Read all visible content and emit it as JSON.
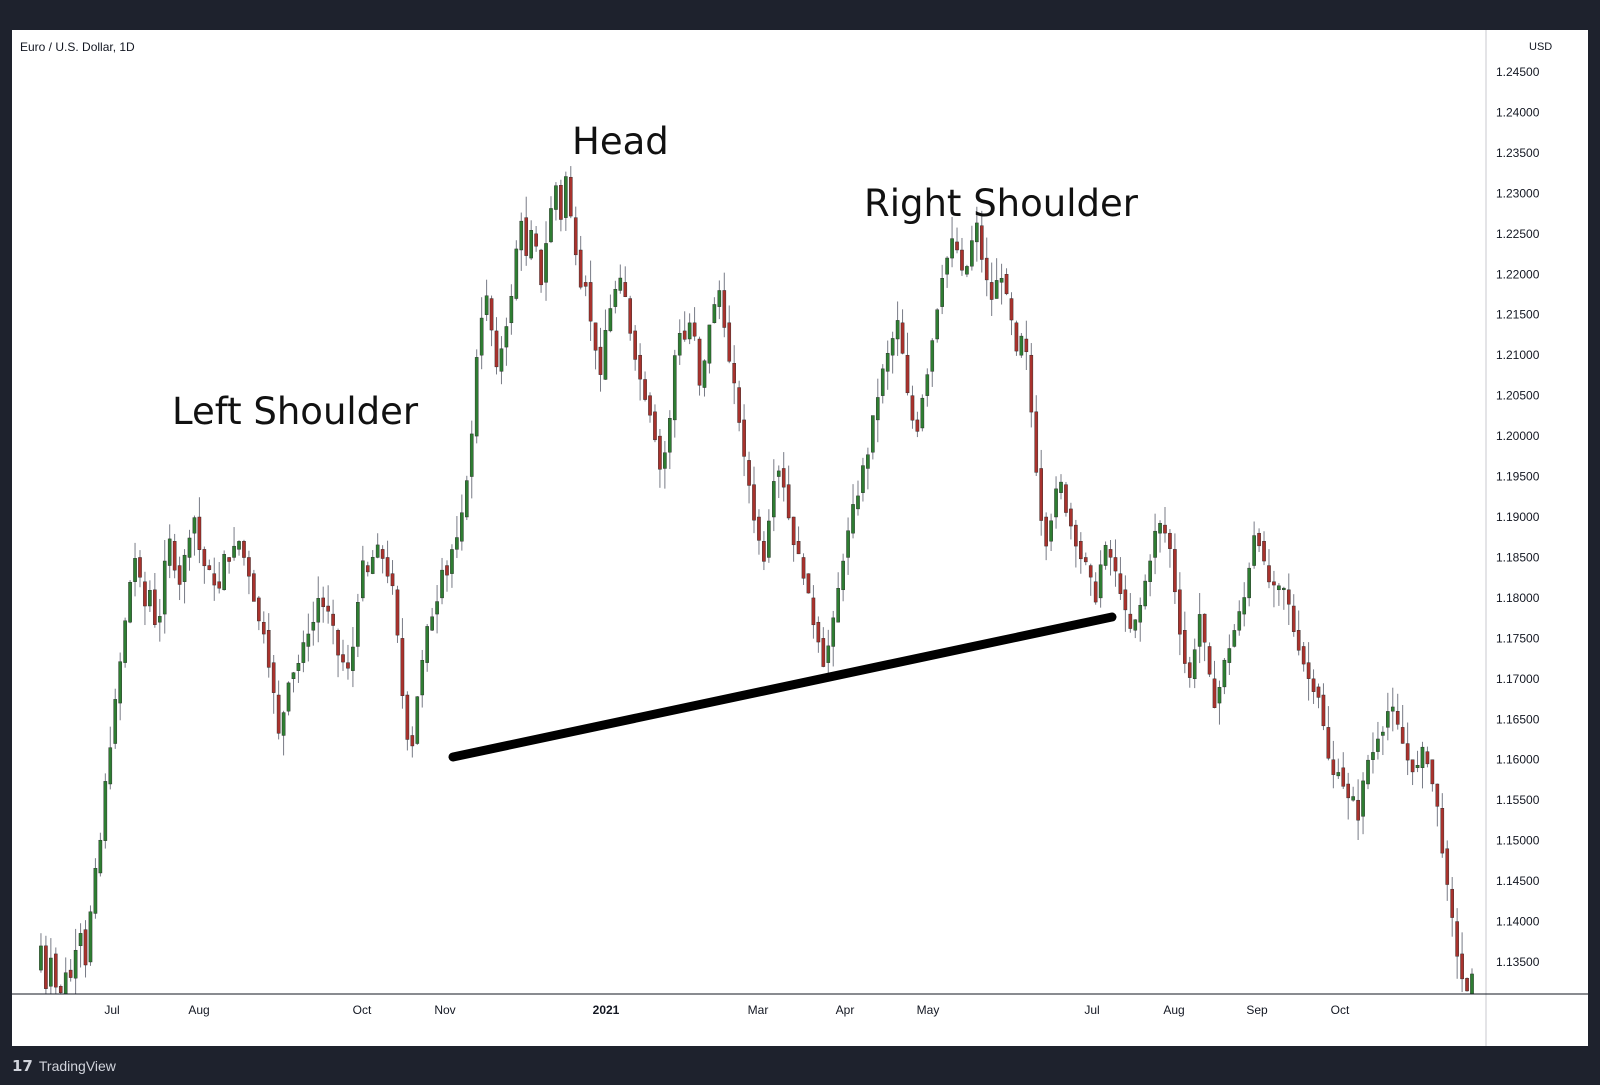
{
  "symbol": "Euro / U.S. Dollar, 1D",
  "brand": "TradingView",
  "chart_data": {
    "type": "candlestick",
    "title": "Euro / U.S. Dollar, 1D",
    "ylabel": "USD",
    "ylim": [
      1.131,
      1.2475
    ],
    "y_ticks": [
      "1.24500",
      "1.24000",
      "1.23500",
      "1.23000",
      "1.22500",
      "1.22000",
      "1.21500",
      "1.21000",
      "1.20500",
      "1.20000",
      "1.19500",
      "1.19000",
      "1.18500",
      "1.18000",
      "1.17500",
      "1.17000",
      "1.16500",
      "1.16000",
      "1.15500",
      "1.15000",
      "1.14500",
      "1.14000",
      "1.13500"
    ],
    "x_ticks": [
      {
        "label": "Jul",
        "bold": false
      },
      {
        "label": "Aug",
        "bold": false
      },
      {
        "label": "Oct",
        "bold": false
      },
      {
        "label": "Nov",
        "bold": false
      },
      {
        "label": "2021",
        "bold": true
      },
      {
        "label": "Mar",
        "bold": false
      },
      {
        "label": "Apr",
        "bold": false
      },
      {
        "label": "May",
        "bold": false
      },
      {
        "label": "Jul",
        "bold": false
      },
      {
        "label": "Aug",
        "bold": false
      },
      {
        "label": "Sep",
        "bold": false
      },
      {
        "label": "Oct",
        "bold": false
      }
    ],
    "up_color": "#2e7d32",
    "down_color": "#a8322d",
    "wick_color": "#787b86",
    "price_path": [
      1.134,
      1.137,
      1.132,
      1.136,
      1.132,
      1.131,
      1.134,
      1.133,
      1.137,
      1.139,
      1.135,
      1.141,
      1.146,
      1.15,
      1.157,
      1.162,
      1.167,
      1.172,
      1.177,
      1.182,
      1.185,
      1.182,
      1.179,
      1.181,
      1.177,
      1.178,
      1.184,
      1.187,
      1.184,
      1.182,
      1.185,
      1.188,
      1.19,
      1.186,
      1.184,
      1.183,
      1.182,
      1.181,
      1.185,
      1.185,
      1.186,
      1.187,
      1.185,
      1.183,
      1.18,
      1.177,
      1.176,
      1.172,
      1.168,
      1.163,
      1.166,
      1.17,
      1.171,
      1.172,
      1.174,
      1.176,
      1.177,
      1.18,
      1.179,
      1.178,
      1.176,
      1.173,
      1.172,
      1.171,
      1.174,
      1.18,
      1.184,
      1.183,
      1.185,
      1.186,
      1.185,
      1.183,
      1.181,
      1.175,
      1.168,
      1.163,
      1.162,
      1.168,
      1.172,
      1.176,
      1.178,
      1.18,
      1.184,
      1.183,
      1.186,
      1.187,
      1.19,
      1.195,
      1.2,
      1.21,
      1.215,
      1.217,
      1.213,
      1.208,
      1.211,
      1.214,
      1.217,
      1.223,
      1.227,
      1.222,
      1.225,
      1.223,
      1.219,
      1.224,
      1.228,
      1.231,
      1.227,
      1.232,
      1.227,
      1.223,
      1.219,
      1.219,
      1.214,
      1.211,
      1.207,
      1.213,
      1.216,
      1.218,
      1.219,
      1.217,
      1.213,
      1.21,
      1.207,
      1.205,
      1.203,
      1.2,
      1.196,
      1.198,
      1.202,
      1.21,
      1.213,
      1.212,
      1.214,
      1.212,
      1.206,
      1.209,
      1.214,
      1.216,
      1.218,
      1.214,
      1.209,
      1.206,
      1.202,
      1.197,
      1.194,
      1.19,
      1.187,
      1.185,
      1.19,
      1.195,
      1.196,
      1.194,
      1.19,
      1.187,
      1.185,
      1.183,
      1.18,
      1.177,
      1.175,
      1.172,
      1.174,
      1.177,
      1.181,
      1.185,
      1.188,
      1.191,
      1.193,
      1.196,
      1.198,
      1.202,
      1.205,
      1.208,
      1.21,
      1.212,
      1.214,
      1.21,
      1.205,
      1.202,
      1.201,
      1.205,
      1.208,
      1.212,
      1.216,
      1.22,
      1.222,
      1.224,
      1.223,
      1.22,
      1.221,
      1.224,
      1.226,
      1.222,
      1.219,
      1.217,
      1.219,
      1.22,
      1.217,
      1.214,
      1.21,
      1.212,
      1.21,
      1.203,
      1.196,
      1.19,
      1.187,
      1.19,
      1.193,
      1.194,
      1.191,
      1.189,
      1.187,
      1.185,
      1.184,
      1.182,
      1.18,
      1.184,
      1.186,
      1.185,
      1.183,
      1.181,
      1.178,
      1.176,
      1.177,
      1.179,
      1.182,
      1.185,
      1.188,
      1.189,
      1.188,
      1.186,
      1.181,
      1.176,
      1.172,
      1.17,
      1.174,
      1.178,
      1.174,
      1.17,
      1.167,
      1.169,
      1.172,
      1.174,
      1.176,
      1.178,
      1.18,
      1.184,
      1.188,
      1.187,
      1.184,
      1.182,
      1.181,
      1.181,
      1.181,
      1.179,
      1.176,
      1.174,
      1.172,
      1.17,
      1.169,
      1.168,
      1.164,
      1.16,
      1.158,
      1.159,
      1.157,
      1.155,
      1.155,
      1.153,
      1.157,
      1.16,
      1.161,
      1.163,
      1.164,
      1.166,
      1.166,
      1.164,
      1.162,
      1.16,
      1.159,
      1.159,
      1.161,
      1.16,
      1.157,
      1.154,
      1.149,
      1.144,
      1.14,
      1.136,
      1.133,
      1.131,
      1.133
    ],
    "trendline": {
      "from": {
        "x": "Nov",
        "y": 1.1605
      },
      "to": {
        "x": "Jul",
        "y": 1.1775
      }
    },
    "annotations": [
      "Left Shoulder",
      "Head",
      "Right Shoulder"
    ]
  }
}
